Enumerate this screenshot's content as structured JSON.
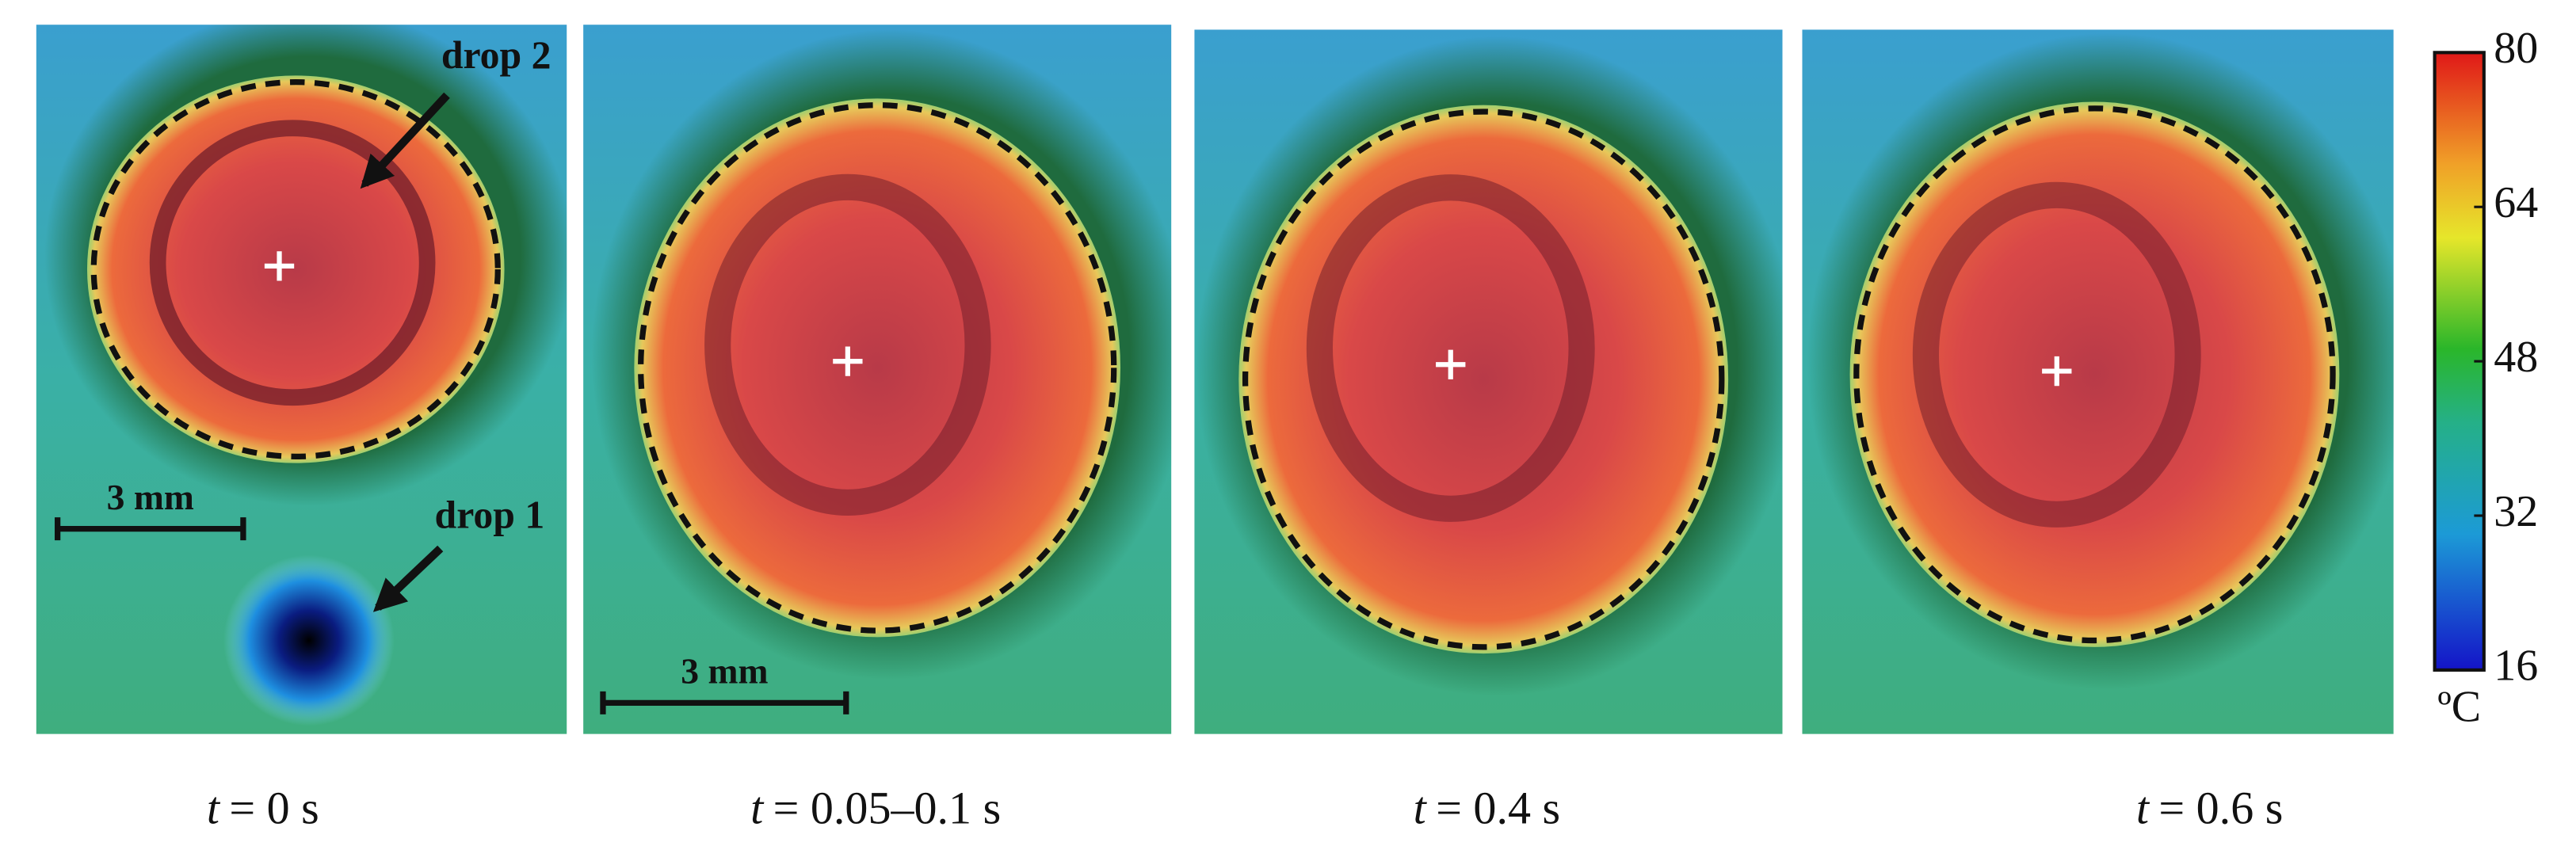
{
  "panels": [
    {
      "time_variable": "t",
      "time_rest": "= 0 s",
      "annotations": [
        "drop 2",
        "drop 1"
      ],
      "scale_bar": "3 mm"
    },
    {
      "time_variable": "t",
      "time_rest": "= 0.05–0.1 s",
      "scale_bar": "3 mm"
    },
    {
      "time_variable": "t",
      "time_rest": "= 0.4 s"
    },
    {
      "time_variable": "t",
      "time_rest": "= 0.6 s"
    }
  ],
  "colorbar": {
    "lim": [
      16,
      80
    ],
    "ticks": [
      16,
      32,
      48,
      64,
      80
    ],
    "unit": "ºC"
  }
}
